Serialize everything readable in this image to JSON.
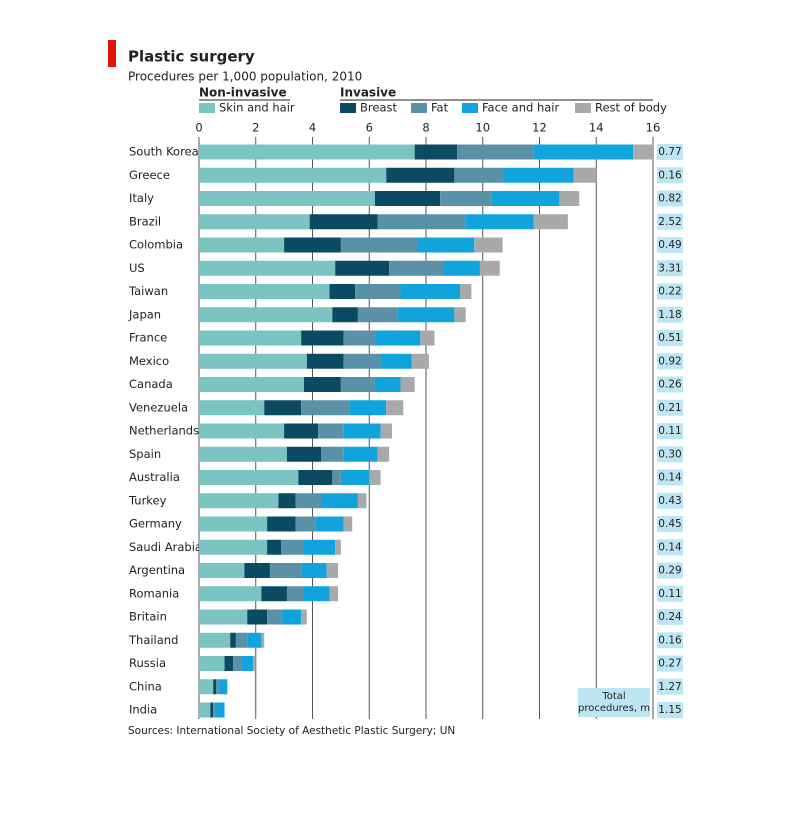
{
  "chart_data": {
    "type": "stacked-bar-horizontal",
    "title": "Plastic surgery",
    "subtitle": "Procedures per 1,000 population, 2010",
    "groups": [
      "Non-invasive",
      "Invasive"
    ],
    "categories": [
      "South Korea",
      "Greece",
      "Italy",
      "Brazil",
      "Colombia",
      "US",
      "Taiwan",
      "Japan",
      "France",
      "Mexico",
      "Canada",
      "Venezuela",
      "Netherlands",
      "Spain",
      "Australia",
      "Turkey",
      "Germany",
      "Saudi Arabia",
      "Argentina",
      "Romania",
      "Britain",
      "Thailand",
      "Russia",
      "China",
      "India"
    ],
    "series": [
      {
        "name": "Skin and hair",
        "color": "#7ac4c2",
        "values": [
          7.6,
          6.6,
          6.2,
          3.9,
          3.0,
          4.8,
          4.6,
          4.7,
          3.6,
          3.8,
          3.7,
          2.3,
          3.0,
          3.1,
          3.5,
          2.8,
          2.4,
          2.4,
          1.6,
          2.2,
          1.7,
          1.1,
          0.9,
          0.5,
          0.4
        ]
      },
      {
        "name": "Breast",
        "color": "#0b4a63",
        "values": [
          1.5,
          2.4,
          2.3,
          2.4,
          2.0,
          1.9,
          0.9,
          0.9,
          1.5,
          1.3,
          1.3,
          1.3,
          1.2,
          1.2,
          1.2,
          0.6,
          1.0,
          0.5,
          0.9,
          0.9,
          0.7,
          0.2,
          0.3,
          0.1,
          0.1
        ]
      },
      {
        "name": "Fat",
        "color": "#5b91a6",
        "values": [
          2.7,
          1.7,
          1.8,
          3.1,
          2.7,
          1.9,
          1.6,
          1.4,
          1.1,
          1.3,
          1.2,
          1.7,
          0.9,
          0.8,
          0.3,
          0.9,
          0.7,
          0.8,
          1.1,
          0.6,
          0.5,
          0.4,
          0.3,
          0.1,
          0.1
        ]
      },
      {
        "name": "Face and hair",
        "color": "#10a3dc",
        "values": [
          3.5,
          2.5,
          2.4,
          2.4,
          2.0,
          1.3,
          2.1,
          2.0,
          1.6,
          1.1,
          0.9,
          1.3,
          1.3,
          1.2,
          1.0,
          1.3,
          1.0,
          1.1,
          0.9,
          0.9,
          0.7,
          0.5,
          0.4,
          0.3,
          0.3
        ]
      },
      {
        "name": "Rest of body",
        "color": "#a8a9ab",
        "values": [
          0.7,
          0.8,
          0.7,
          1.2,
          1.0,
          0.7,
          0.4,
          0.4,
          0.5,
          0.6,
          0.5,
          0.6,
          0.4,
          0.4,
          0.4,
          0.3,
          0.3,
          0.2,
          0.4,
          0.3,
          0.2,
          0.1,
          0.1,
          0,
          0
        ]
      }
    ],
    "xlim": [
      0,
      16
    ],
    "xticks": [
      0,
      2,
      4,
      6,
      8,
      10,
      12,
      14,
      16
    ],
    "grid": true,
    "totals": {
      "title": [
        "Total",
        "procedures, m"
      ],
      "values": [
        0.77,
        0.16,
        0.82,
        2.52,
        0.49,
        3.31,
        0.22,
        1.18,
        0.51,
        0.92,
        0.26,
        0.21,
        0.11,
        0.3,
        0.14,
        0.43,
        0.45,
        0.14,
        0.29,
        0.11,
        0.24,
        0.16,
        0.27,
        1.27,
        1.15
      ],
      "value_labels": [
        "0.77",
        "0.16",
        "0.82",
        "2.52",
        "0.49",
        "3.31",
        "0.22",
        "1.18",
        "0.51",
        "0.92",
        "0.26",
        "0.21",
        "0.11",
        "0.30",
        "0.14",
        "0.43",
        "0.45",
        "0.14",
        "0.29",
        "0.11",
        "0.24",
        "0.16",
        "0.27",
        "1.27",
        "1.15"
      ]
    },
    "source": "Sources: International Society of Aesthetic Plastic Surgery; UN"
  }
}
